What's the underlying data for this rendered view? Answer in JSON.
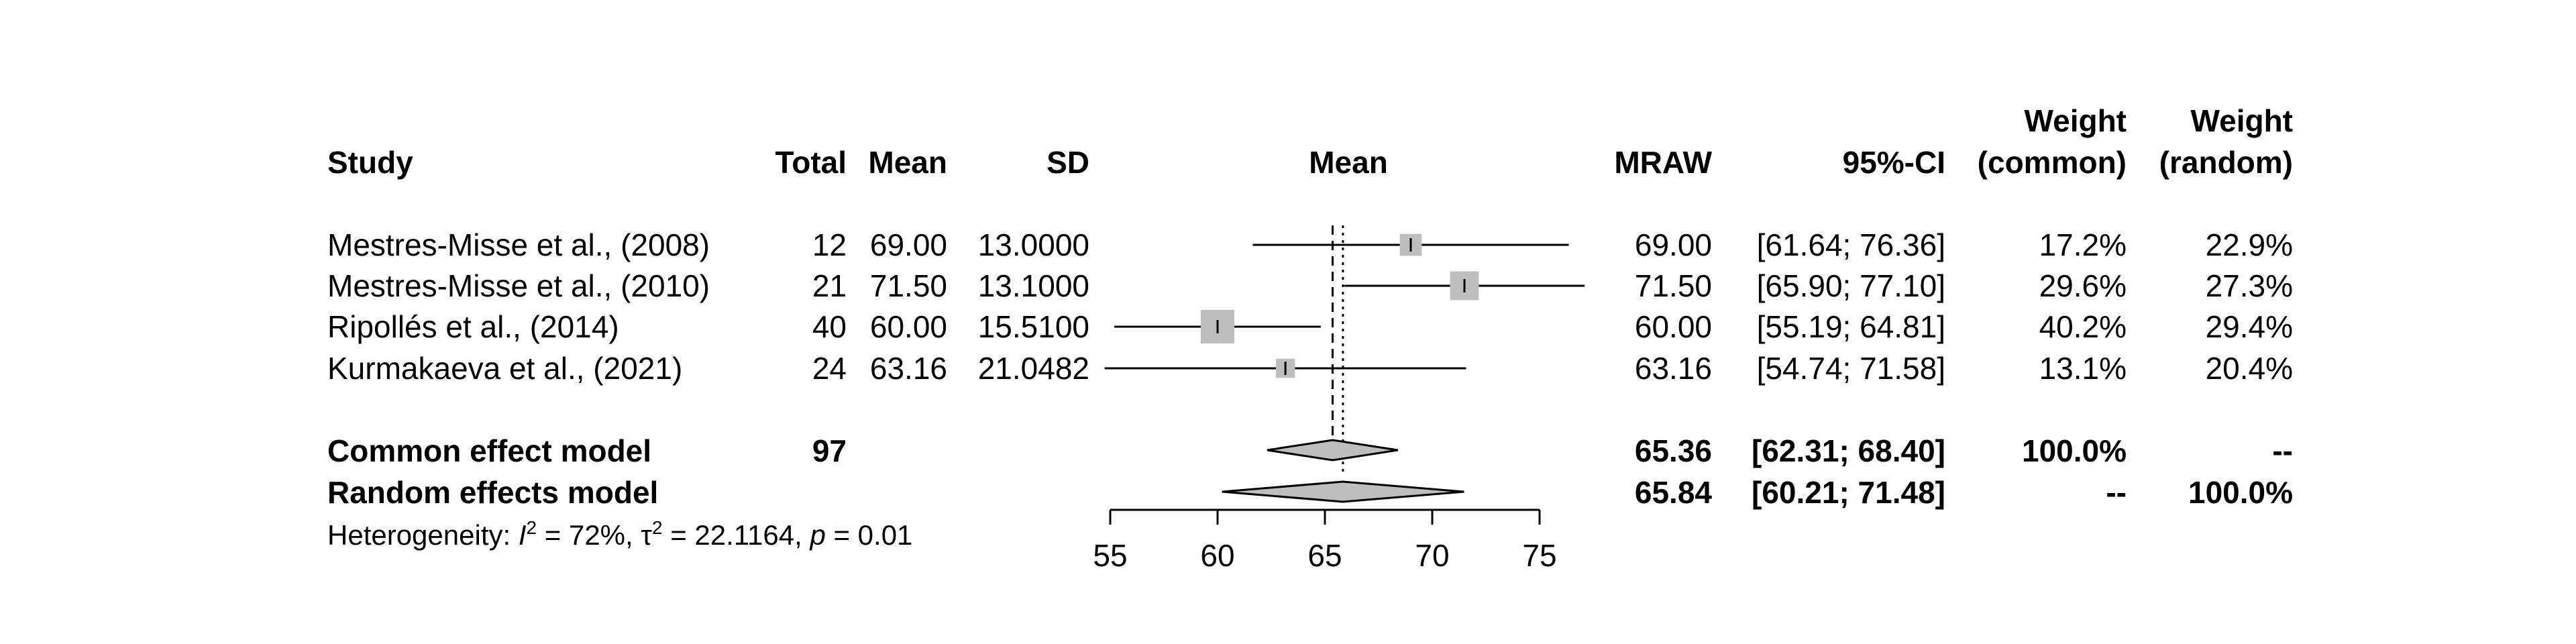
{
  "chart_data": {
    "type": "forest",
    "header": {
      "study": "Study",
      "total": "Total",
      "mean": "Mean",
      "sd": "SD",
      "plot_label": "Mean",
      "mraw": "MRAW",
      "ci": "95%-CI",
      "weight_common_line1": "Weight",
      "weight_common_line2": "(common)",
      "weight_random_line1": "Weight",
      "weight_random_line2": "(random)"
    },
    "studies": [
      {
        "study": "Mestres-Misse et al., (2008)",
        "total": "12",
        "mean": "69.00",
        "sd": "13.0000",
        "mraw": "69.00",
        "ci_text": "[61.64; 76.36]",
        "weight_common": "17.2%",
        "weight_random": "22.9%",
        "est": 69.0,
        "lower": 61.64,
        "upper": 76.36,
        "weight": 0.172
      },
      {
        "study": "Mestres-Misse et al., (2010)",
        "total": "21",
        "mean": "71.50",
        "sd": "13.1000",
        "mraw": "71.50",
        "ci_text": "[65.90; 77.10]",
        "weight_common": "29.6%",
        "weight_random": "27.3%",
        "est": 71.5,
        "lower": 65.9,
        "upper": 77.1,
        "weight": 0.296
      },
      {
        "study": "Ripollés et al., (2014)",
        "total": "40",
        "mean": "60.00",
        "sd": "15.5100",
        "mraw": "60.00",
        "ci_text": "[55.19; 64.81]",
        "weight_common": "40.2%",
        "weight_random": "29.4%",
        "est": 60.0,
        "lower": 55.19,
        "upper": 64.81,
        "weight": 0.402
      },
      {
        "study": "Kurmakaeva et al., (2021)",
        "total": "24",
        "mean": "63.16",
        "sd": "21.0482",
        "mraw": "63.16",
        "ci_text": "[54.74; 71.58]",
        "weight_common": "13.1%",
        "weight_random": "20.4%",
        "est": 63.16,
        "lower": 54.74,
        "upper": 71.58,
        "weight": 0.131
      }
    ],
    "models": [
      {
        "label": "Common effect model",
        "total": "97",
        "mraw": "65.36",
        "ci_text": "[62.31; 68.40]",
        "weight_common": "100.0%",
        "weight_random": "--",
        "est": 65.36,
        "lower": 62.31,
        "upper": 68.4,
        "line": "dashed"
      },
      {
        "label": "Random effects model",
        "total": "",
        "mraw": "65.84",
        "ci_text": "[60.21; 71.48]",
        "weight_common": "--",
        "weight_random": "100.0%",
        "est": 65.84,
        "lower": 60.21,
        "upper": 71.48,
        "line": "dotted"
      }
    ],
    "heterogeneity": {
      "prefix": "Heterogeneity: ",
      "i2_symbol": "I",
      "i2_value": " = 72%, ",
      "tau2_symbol": "τ",
      "tau2_value": " = 22.1164, ",
      "p_symbol": "p",
      "p_value": " = 0.01"
    },
    "x_axis": {
      "ticks": [
        55,
        60,
        65,
        70,
        75
      ],
      "range": [
        55,
        75
      ]
    },
    "colors": {
      "square": "#bebebe",
      "diamond": "#bebebe",
      "line": "#000000"
    }
  }
}
